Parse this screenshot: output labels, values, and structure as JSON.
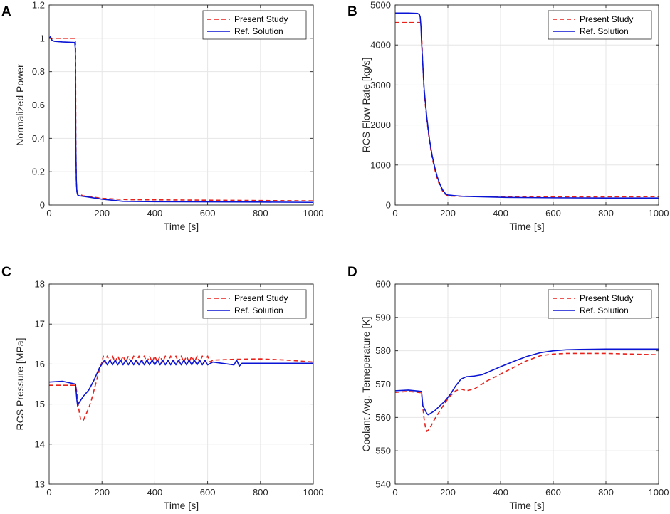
{
  "chart_data": [
    {
      "type": "line",
      "panel_label": "A",
      "title": "",
      "xlabel": "Time [s]",
      "ylabel": "Normalized Power",
      "xlim": [
        0,
        1000
      ],
      "ylim": [
        0,
        1.2
      ],
      "xticks": [
        0,
        200,
        400,
        600,
        800,
        1000
      ],
      "yticks": [
        0,
        0.2,
        0.4,
        0.6,
        0.8,
        1,
        1.2
      ],
      "ytick_labels": [
        "0",
        "0.2",
        "0.4",
        "0.6",
        "0.8",
        "1",
        "1.2"
      ],
      "grid": true,
      "legend_position": "top-right",
      "series": [
        {
          "name": "Present Study",
          "color": "#e8211b",
          "dash": true,
          "x": [
            0,
            5,
            10,
            20,
            98,
            100,
            101,
            103,
            106,
            110,
            130,
            200,
            300,
            500,
            700,
            1000
          ],
          "y": [
            1.0,
            1.0,
            1.0,
            1.0,
            1.0,
            0.97,
            0.4,
            0.13,
            0.08,
            0.065,
            0.055,
            0.04,
            0.032,
            0.03,
            0.028,
            0.025
          ]
        },
        {
          "name": "Ref. Solution",
          "color": "#0a14d4",
          "dash": false,
          "x": [
            0,
            5,
            8,
            10,
            15,
            20,
            50,
            95,
            97,
            99,
            100,
            101,
            103,
            105,
            108,
            115,
            130,
            200,
            280,
            400,
            600,
            800,
            1000
          ],
          "y": [
            1.0,
            1.01,
            1.0,
            0.99,
            0.985,
            0.982,
            0.978,
            0.975,
            0.975,
            0.94,
            0.7,
            0.35,
            0.15,
            0.08,
            0.06,
            0.055,
            0.052,
            0.035,
            0.022,
            0.02,
            0.019,
            0.018,
            0.016
          ]
        }
      ]
    },
    {
      "type": "line",
      "panel_label": "B",
      "title": "",
      "xlabel": "Time [s]",
      "ylabel": "RCS Flow Rate [kg/s]",
      "xlim": [
        0,
        1000
      ],
      "ylim": [
        0,
        5000
      ],
      "xticks": [
        0,
        200,
        400,
        600,
        800,
        1000
      ],
      "yticks": [
        0,
        1000,
        2000,
        3000,
        4000,
        5000
      ],
      "ytick_labels": [
        "0",
        "1000",
        "2000",
        "3000",
        "4000",
        "5000"
      ],
      "grid": true,
      "legend_position": "top-right",
      "series": [
        {
          "name": "Present Study",
          "color": "#e8211b",
          "dash": true,
          "x": [
            0,
            95,
            98,
            100,
            105,
            110,
            120,
            130,
            140,
            150,
            160,
            170,
            180,
            190,
            200,
            300,
            500,
            700,
            1000
          ],
          "y": [
            4560,
            4560,
            4500,
            4300,
            3500,
            2800,
            2150,
            1600,
            1200,
            900,
            650,
            480,
            350,
            270,
            225,
            215,
            205,
            205,
            210
          ]
        },
        {
          "name": "Ref. Solution",
          "color": "#0a14d4",
          "dash": false,
          "x": [
            0,
            50,
            85,
            92,
            95,
            98,
            100,
            105,
            110,
            120,
            130,
            140,
            150,
            160,
            170,
            180,
            190,
            200,
            250,
            420,
            600,
            800,
            1000
          ],
          "y": [
            4800,
            4800,
            4790,
            4760,
            4700,
            4450,
            4100,
            3500,
            2900,
            2200,
            1650,
            1250,
            950,
            700,
            520,
            380,
            290,
            250,
            220,
            190,
            180,
            175,
            175
          ]
        }
      ]
    },
    {
      "type": "line",
      "panel_label": "C",
      "title": "",
      "xlabel": "Time [s]",
      "ylabel": "RCS Pressure [MPa]",
      "xlim": [
        0,
        1000
      ],
      "ylim": [
        13,
        18
      ],
      "xticks": [
        0,
        200,
        400,
        600,
        800,
        1000
      ],
      "yticks": [
        13,
        14,
        15,
        16,
        17,
        18
      ],
      "ytick_labels": [
        "13",
        "14",
        "15",
        "16",
        "17",
        "18"
      ],
      "grid": true,
      "legend_position": "top-right",
      "series": [
        {
          "name": "Present Study",
          "color": "#e8211b",
          "dash": true,
          "x": [
            0,
            100,
            105,
            110,
            115,
            120,
            130,
            140,
            150,
            160,
            170,
            180,
            190,
            200,
            205,
            210,
            220,
            230,
            240,
            250,
            260,
            270,
            280,
            290,
            300,
            310,
            320,
            330,
            340,
            350,
            360,
            370,
            380,
            390,
            400,
            410,
            420,
            430,
            440,
            450,
            460,
            470,
            480,
            490,
            500,
            510,
            520,
            530,
            540,
            550,
            560,
            570,
            580,
            590,
            600,
            610,
            620,
            700,
            800,
            900,
            1000
          ],
          "y": [
            15.47,
            15.47,
            15.3,
            15.0,
            14.75,
            14.6,
            14.6,
            14.75,
            14.9,
            15.1,
            15.35,
            15.6,
            15.85,
            16.05,
            16.2,
            16.05,
            16.2,
            16.05,
            16.2,
            16.05,
            16.2,
            16.05,
            16.2,
            16.05,
            16.2,
            16.05,
            16.2,
            16.05,
            16.2,
            16.05,
            16.2,
            16.05,
            16.2,
            16.05,
            16.2,
            16.05,
            16.2,
            16.05,
            16.2,
            16.05,
            16.2,
            16.05,
            16.2,
            16.05,
            16.2,
            16.05,
            16.2,
            16.05,
            16.2,
            16.05,
            16.2,
            16.05,
            16.2,
            16.05,
            16.2,
            16.05,
            16.1,
            16.12,
            16.13,
            16.1,
            16.05
          ]
        },
        {
          "name": "Ref. Solution",
          "color": "#0a14d4",
          "dash": false,
          "x": [
            0,
            50,
            100,
            105,
            108,
            110,
            120,
            130,
            150,
            170,
            190,
            200,
            210,
            220,
            230,
            240,
            250,
            260,
            270,
            280,
            290,
            300,
            310,
            320,
            330,
            340,
            350,
            360,
            370,
            380,
            390,
            400,
            410,
            420,
            430,
            440,
            450,
            460,
            470,
            480,
            490,
            500,
            510,
            520,
            530,
            540,
            550,
            560,
            570,
            580,
            590,
            600,
            620,
            700,
            710,
            720,
            730,
            800,
            1000
          ],
          "y": [
            15.55,
            15.57,
            15.5,
            15.1,
            14.95,
            15.0,
            15.1,
            15.2,
            15.35,
            15.6,
            15.9,
            16.0,
            16.1,
            15.98,
            16.1,
            15.98,
            16.1,
            15.98,
            16.1,
            15.98,
            16.1,
            15.98,
            16.1,
            15.98,
            16.1,
            15.98,
            16.1,
            15.98,
            16.1,
            15.98,
            16.1,
            15.98,
            16.1,
            15.98,
            16.1,
            15.98,
            16.1,
            15.98,
            16.1,
            15.98,
            16.1,
            15.98,
            16.1,
            15.98,
            16.1,
            15.98,
            16.1,
            15.98,
            16.1,
            15.98,
            16.1,
            15.98,
            16.05,
            15.98,
            16.1,
            15.95,
            16.02,
            16.02,
            16.02
          ]
        }
      ]
    },
    {
      "type": "line",
      "panel_label": "D",
      "title": "",
      "xlabel": "Time [s]",
      "ylabel": "Coolant Avg. Temeperature [K]",
      "xlim": [
        0,
        1000
      ],
      "ylim": [
        540,
        600
      ],
      "xticks": [
        0,
        200,
        400,
        600,
        800,
        1000
      ],
      "yticks": [
        540,
        550,
        560,
        570,
        580,
        590,
        600
      ],
      "ytick_labels": [
        "540",
        "550",
        "560",
        "570",
        "580",
        "590",
        "600"
      ],
      "grid": true,
      "legend_position": "top-right",
      "series": [
        {
          "name": "Present Study",
          "color": "#e8211b",
          "dash": true,
          "x": [
            0,
            50,
            100,
            105,
            110,
            115,
            120,
            130,
            150,
            170,
            190,
            210,
            230,
            250,
            270,
            300,
            350,
            400,
            450,
            500,
            550,
            600,
            650,
            700,
            800,
            900,
            1000
          ],
          "y": [
            567.5,
            567.8,
            567.4,
            563.0,
            559.5,
            557.0,
            555.8,
            556.5,
            559.5,
            562.0,
            564.5,
            566.5,
            568.0,
            568.5,
            568.0,
            568.5,
            571.0,
            573.0,
            575.0,
            577.0,
            578.5,
            579.0,
            579.2,
            579.2,
            579.2,
            579.0,
            578.8
          ]
        },
        {
          "name": "Ref. Solution",
          "color": "#0a14d4",
          "dash": false,
          "x": [
            0,
            50,
            100,
            105,
            110,
            115,
            120,
            125,
            130,
            150,
            170,
            190,
            210,
            230,
            250,
            270,
            300,
            330,
            350,
            400,
            450,
            500,
            550,
            600,
            650,
            700,
            800,
            900,
            1000
          ],
          "y": [
            568.0,
            568.2,
            567.8,
            563.5,
            562.8,
            562.0,
            561.2,
            560.8,
            561.0,
            562.0,
            563.5,
            565.0,
            567.0,
            569.5,
            571.5,
            572.2,
            572.4,
            572.8,
            573.5,
            575.2,
            576.8,
            578.3,
            579.4,
            580.0,
            580.3,
            580.4,
            580.5,
            580.5,
            580.5
          ]
        }
      ]
    }
  ]
}
